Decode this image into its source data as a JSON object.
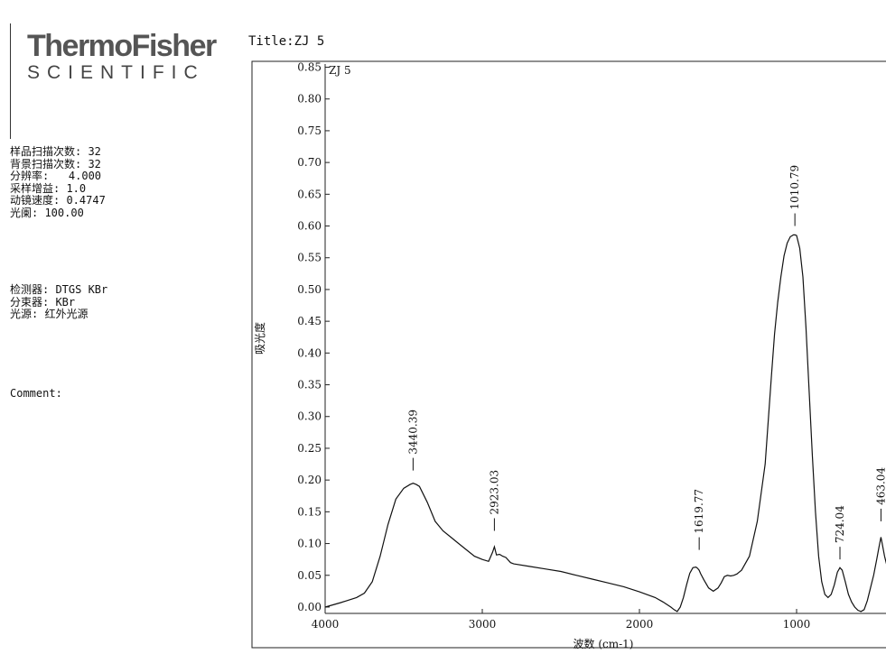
{
  "header": {
    "brand_main": "ThermoFisher",
    "brand_sub": "SCIENTIFIC",
    "title": "Title:ZJ 5"
  },
  "params": {
    "scan_block": "样品扫描次数: 32\n背景扫描次数: 32\n分辨率:   4.000\n采样增益: 1.0\n动镜速度: 0.4747\n光阑: 100.00",
    "detector_block": "检测器: DTGS KBr\n分束器: KBr\n光源: 红外光源",
    "comment": "Comment:"
  },
  "chart_data": {
    "type": "line",
    "sample_label": "ZJ 5",
    "xlabel": "波数 (cm-1)",
    "ylabel": "吸光度",
    "xlim": [
      4000,
      400
    ],
    "x_reversed": true,
    "ylim": [
      -0.01,
      0.855
    ],
    "x_ticks": [
      4000,
      3000,
      2000,
      1000
    ],
    "y_ticks": [
      "0.00",
      "0.05",
      "0.10",
      "0.15",
      "0.20",
      "0.25",
      "0.30",
      "0.35",
      "0.40",
      "0.45",
      "0.50",
      "0.55",
      "0.60",
      "0.65",
      "0.70",
      "0.75",
      "0.80",
      "0.85"
    ],
    "peaks": [
      {
        "x": 3440.39,
        "label": "3440.39",
        "y": 0.215
      },
      {
        "x": 2923.03,
        "label": "2923.03",
        "y": 0.12
      },
      {
        "x": 1619.77,
        "label": "1619.77",
        "y": 0.09
      },
      {
        "x": 1010.79,
        "label": "1010.79",
        "y": 0.6
      },
      {
        "x": 724.04,
        "label": "724.04",
        "y": 0.075
      },
      {
        "x": 463.0,
        "label": "463.04",
        "y": 0.135
      }
    ],
    "series": [
      {
        "x": [
          4000,
          3900,
          3800,
          3750,
          3700,
          3650,
          3600,
          3550,
          3500,
          3460,
          3440,
          3420,
          3400,
          3350,
          3300,
          3250,
          3200,
          3150,
          3100,
          3050,
          3000,
          2960,
          2935,
          2923,
          2910,
          2890,
          2870,
          2850,
          2820,
          2800,
          2700,
          2600,
          2500,
          2400,
          2300,
          2200,
          2100,
          2000,
          1900,
          1850,
          1800,
          1780,
          1760,
          1740,
          1720,
          1700,
          1680,
          1660,
          1640,
          1630,
          1620,
          1610,
          1590,
          1560,
          1530,
          1500,
          1480,
          1460,
          1440,
          1420,
          1400,
          1380,
          1350,
          1300,
          1250,
          1200,
          1180,
          1160,
          1140,
          1120,
          1100,
          1080,
          1060,
          1040,
          1020,
          1010,
          1000,
          980,
          960,
          940,
          920,
          900,
          880,
          860,
          840,
          820,
          800,
          780,
          760,
          740,
          724,
          710,
          690,
          670,
          650,
          630,
          610,
          590,
          570,
          550,
          530,
          510,
          490,
          475,
          463,
          455,
          440,
          420,
          405
        ],
        "y": [
          0.0,
          0.007,
          0.015,
          0.022,
          0.04,
          0.08,
          0.13,
          0.17,
          0.187,
          0.193,
          0.195,
          0.193,
          0.19,
          0.165,
          0.135,
          0.12,
          0.11,
          0.1,
          0.09,
          0.08,
          0.075,
          0.072,
          0.086,
          0.095,
          0.082,
          0.083,
          0.08,
          0.078,
          0.07,
          0.068,
          0.064,
          0.06,
          0.056,
          0.05,
          0.044,
          0.038,
          0.032,
          0.024,
          0.015,
          0.008,
          0.0,
          -0.004,
          -0.007,
          0.0,
          0.015,
          0.035,
          0.053,
          0.062,
          0.063,
          0.061,
          0.058,
          0.052,
          0.043,
          0.03,
          0.025,
          0.03,
          0.038,
          0.048,
          0.05,
          0.049,
          0.05,
          0.052,
          0.058,
          0.08,
          0.135,
          0.225,
          0.295,
          0.365,
          0.43,
          0.48,
          0.52,
          0.553,
          0.573,
          0.583,
          0.586,
          0.586,
          0.585,
          0.565,
          0.52,
          0.44,
          0.34,
          0.24,
          0.15,
          0.08,
          0.04,
          0.02,
          0.015,
          0.02,
          0.035,
          0.055,
          0.062,
          0.058,
          0.04,
          0.02,
          0.008,
          0.0,
          -0.005,
          -0.007,
          -0.004,
          0.01,
          0.03,
          0.05,
          0.075,
          0.095,
          0.11,
          0.1,
          0.08,
          0.06,
          0.055
        ]
      }
    ]
  }
}
